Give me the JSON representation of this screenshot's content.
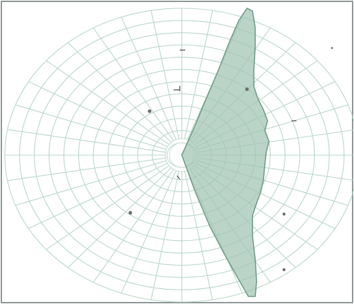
{
  "chart": {
    "type": "polar-field-plot",
    "grid": true,
    "ring_count": 12,
    "spoke_count": 36,
    "colors": {
      "grid": "#b9d6c9",
      "shaded_area_fill": "#9fc4b1",
      "shaded_area_stroke": "#6f9c86",
      "frame": "#8f9698",
      "markers": "#6e6e6e"
    }
  }
}
